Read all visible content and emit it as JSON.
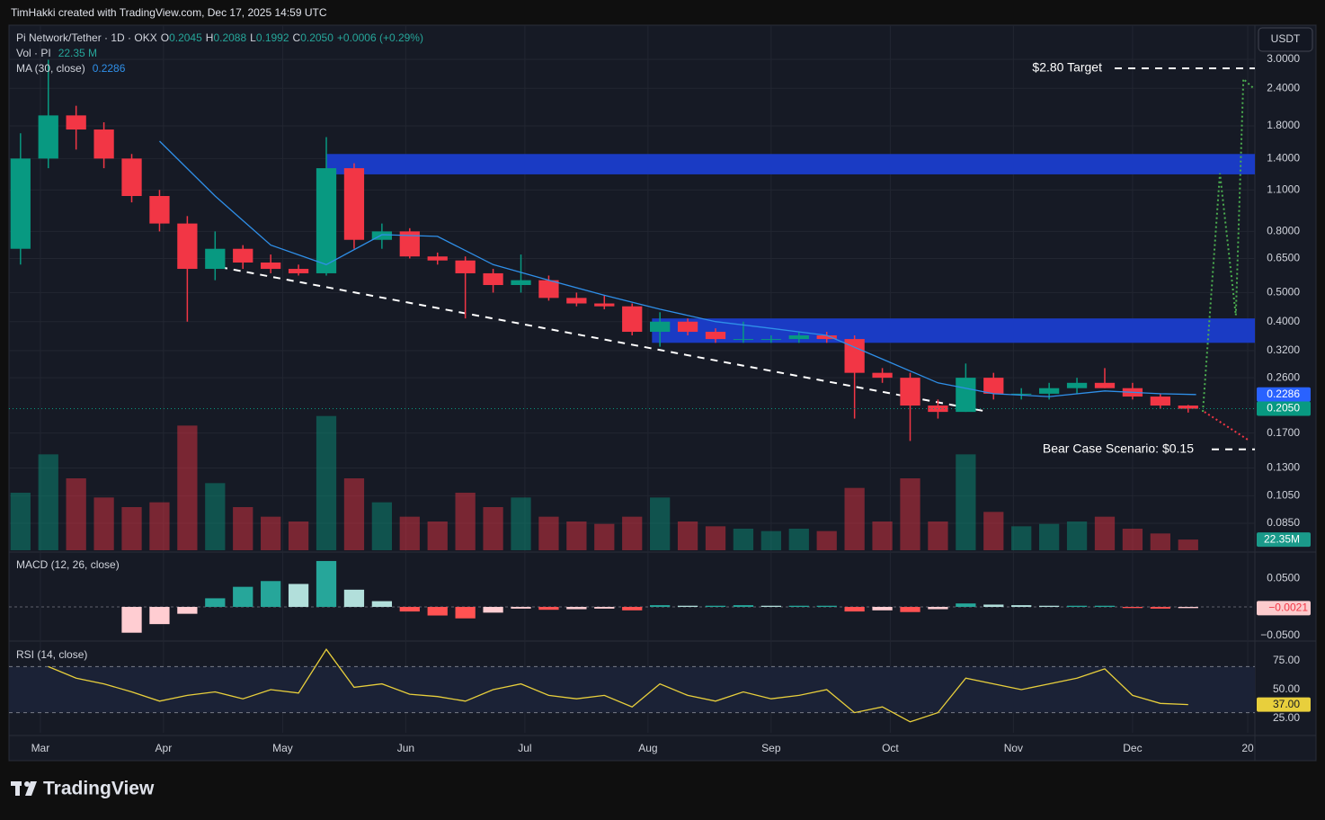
{
  "header": {
    "credit": "TimHakki created with TradingView.com, Dec 17, 2025 14:59 UTC"
  },
  "footer": {
    "brand": "TradingView"
  },
  "chart_data": {
    "type": "candlestick",
    "title": "Pi Network/Tether · 1D · OKX",
    "legend": {
      "o_label": "O",
      "open": "0.2045",
      "h_label": "H",
      "high": "0.2088",
      "l_label": "L",
      "low": "0.1992",
      "c_label": "C",
      "close": "0.2050",
      "change": "+0.0006 (+0.29%)",
      "volume_title": "Vol · PI",
      "volume": "22.35 M",
      "ma_title": "MA (30, close)",
      "ma": "0.2286"
    },
    "currency": "USDT",
    "log_scale": true,
    "grid": true,
    "up_color": "#089981",
    "down_color": "#f23645",
    "x": [
      -5,
      2,
      9,
      16,
      23,
      30,
      37,
      44,
      51,
      58,
      65,
      72,
      79,
      86,
      93,
      100,
      107,
      114,
      121,
      128,
      135,
      142,
      149,
      156,
      163,
      170,
      177,
      184,
      191,
      198,
      205,
      212,
      219,
      226,
      233,
      240,
      247,
      254,
      261,
      268,
      275,
      282,
      289
    ],
    "open": [
      0.7,
      1.4,
      1.95,
      1.75,
      1.4,
      1.05,
      0.85,
      0.6,
      0.7,
      0.63,
      0.6,
      0.58,
      1.3,
      0.75,
      0.8,
      0.66,
      0.64,
      0.58,
      0.53,
      0.55,
      0.48,
      0.46,
      0.45,
      0.37,
      0.4,
      0.37,
      0.35,
      0.35,
      0.35,
      0.36,
      0.35,
      0.27,
      0.26,
      0.21,
      0.2,
      0.26,
      0.23,
      0.23,
      0.24,
      0.25,
      0.24,
      0.225,
      0.21
    ],
    "high": [
      1.7,
      2.99,
      2.1,
      1.85,
      1.45,
      1.1,
      0.9,
      0.8,
      0.72,
      0.67,
      0.62,
      1.65,
      1.35,
      0.85,
      0.82,
      0.68,
      0.66,
      0.6,
      0.67,
      0.57,
      0.5,
      0.49,
      0.46,
      0.43,
      0.41,
      0.38,
      0.4,
      0.36,
      0.37,
      0.37,
      0.36,
      0.28,
      0.27,
      0.22,
      0.29,
      0.27,
      0.24,
      0.25,
      0.26,
      0.28,
      0.25,
      0.23,
      0.211
    ],
    "low": [
      0.62,
      1.3,
      1.5,
      1.3,
      1.0,
      0.8,
      0.4,
      0.55,
      0.6,
      0.58,
      0.57,
      0.57,
      0.7,
      0.7,
      0.65,
      0.62,
      0.41,
      0.5,
      0.5,
      0.47,
      0.45,
      0.44,
      0.36,
      0.33,
      0.36,
      0.34,
      0.34,
      0.34,
      0.34,
      0.34,
      0.19,
      0.25,
      0.16,
      0.19,
      0.2,
      0.22,
      0.22,
      0.22,
      0.23,
      0.24,
      0.22,
      0.205,
      0.199
    ],
    "close": [
      1.4,
      1.95,
      1.75,
      1.4,
      1.05,
      0.85,
      0.6,
      0.7,
      0.63,
      0.6,
      0.58,
      1.3,
      0.75,
      0.8,
      0.66,
      0.64,
      0.58,
      0.53,
      0.55,
      0.48,
      0.46,
      0.45,
      0.37,
      0.4,
      0.37,
      0.35,
      0.35,
      0.35,
      0.36,
      0.35,
      0.27,
      0.26,
      0.21,
      0.2,
      0.26,
      0.23,
      0.23,
      0.24,
      0.25,
      0.24,
      0.225,
      0.21,
      0.205
    ],
    "xlim": [
      -7.9,
      305.8
    ],
    "xticks": [
      {
        "value": 0,
        "label": "Mar"
      },
      {
        "value": 31,
        "label": "Apr"
      },
      {
        "value": 61,
        "label": "May"
      },
      {
        "value": 92,
        "label": "Jun"
      },
      {
        "value": 122,
        "label": "Jul"
      },
      {
        "value": 153,
        "label": "Aug"
      },
      {
        "value": 184,
        "label": "Sep"
      },
      {
        "value": 214,
        "label": "Oct"
      },
      {
        "value": 245,
        "label": "Nov"
      },
      {
        "value": 275,
        "label": "Dec"
      },
      {
        "value": 304,
        "label": "20"
      }
    ],
    "ylim": [
      0.0691,
      3.9
    ],
    "yticks": [
      {
        "value": 3,
        "label": "3.0000"
      },
      {
        "value": 2.4,
        "label": "2.4000"
      },
      {
        "value": 1.8,
        "label": "1.8000"
      },
      {
        "value": 1.4,
        "label": "1.4000"
      },
      {
        "value": 1.1,
        "label": "1.1000"
      },
      {
        "value": 0.8,
        "label": "0.8000"
      },
      {
        "value": 0.65,
        "label": "0.6500"
      },
      {
        "value": 0.5,
        "label": "0.5000"
      },
      {
        "value": 0.4,
        "label": "0.4000"
      },
      {
        "value": 0.32,
        "label": "0.3200"
      },
      {
        "value": 0.26,
        "label": "0.2600"
      },
      {
        "value": 0.17,
        "label": "0.1700"
      },
      {
        "value": 0.13,
        "label": "0.1300"
      },
      {
        "value": 0.105,
        "label": "0.1050"
      },
      {
        "value": 0.085,
        "label": "0.0850"
      }
    ],
    "volume": {
      "lim": [
        0,
        300
      ],
      "values": [
        120,
        200,
        150,
        110,
        90,
        100,
        260,
        140,
        90,
        70,
        60,
        280,
        150,
        100,
        70,
        60,
        120,
        90,
        110,
        70,
        60,
        55,
        70,
        110,
        60,
        50,
        45,
        40,
        45,
        40,
        130,
        60,
        150,
        60,
        200,
        80,
        50,
        55,
        60,
        70,
        45,
        35,
        22.35
      ]
    },
    "ma": {
      "name": "MA (30, close)",
      "color": "#2f8fe8",
      "x": [
        30,
        44,
        58,
        72,
        86,
        100,
        114,
        128,
        142,
        156,
        170,
        184,
        198,
        212,
        226,
        240,
        254,
        268,
        282,
        291
      ],
      "values": [
        1.6,
        1.05,
        0.72,
        0.62,
        0.78,
        0.77,
        0.62,
        0.55,
        0.49,
        0.44,
        0.4,
        0.38,
        0.36,
        0.3,
        0.25,
        0.23,
        0.225,
        0.235,
        0.23,
        0.2286
      ]
    },
    "last_price": {
      "value": 0.205,
      "label": "0.2050"
    },
    "ma_last": {
      "value": 0.2286,
      "label": "0.2286"
    },
    "volume_last": {
      "value": 22.35,
      "label": "22.35M"
    },
    "annotations": {
      "zone_color": "#1a3bc4",
      "zones": [
        {
          "x0": 72,
          "y": [
            1.24,
            1.45
          ]
        },
        {
          "x0": 154,
          "y": [
            0.34,
            0.41
          ]
        }
      ],
      "trendline": {
        "x": [
          45.3,
          238.8
        ],
        "y": [
          0.608,
          0.2
        ]
      },
      "target": {
        "label": "$2.80 Target",
        "value": 2.8
      },
      "bear": {
        "label": "Bear Case Scenario: $0.15",
        "value": 0.15
      },
      "bull_path": {
        "color": "#4caf50",
        "x": [
          292.7,
          297,
          301,
          302.9,
          305.5
        ],
        "y": [
          0.2,
          1.25,
          0.42,
          2.58,
          2.4
        ]
      },
      "bear_path": {
        "color": "#f23645",
        "x": [
          293.1,
          304.5
        ],
        "y": [
          0.2,
          0.16
        ]
      }
    },
    "macd": {
      "title": "MACD (12, 26, close)",
      "ylim": [
        -0.058,
        0.094
      ],
      "yticks": [
        {
          "value": 0.05,
          "label": "0.0500"
        },
        {
          "value": -0.05,
          "label": "−0.0500"
        }
      ],
      "values": [
        null,
        null,
        null,
        null,
        -0.045,
        -0.03,
        -0.012,
        0.015,
        0.035,
        0.045,
        0.04,
        0.08,
        0.03,
        0.01,
        -0.008,
        -0.015,
        -0.02,
        -0.01,
        -0.003,
        -0.005,
        -0.004,
        -0.003,
        -0.006,
        0.003,
        0.002,
        0.002,
        0.003,
        0.002,
        0.002,
        0.002,
        -0.008,
        -0.006,
        -0.009,
        -0.004,
        0.006,
        0.004,
        0.003,
        0.002,
        0.002,
        0.002,
        -0.002,
        -0.003,
        -0.0021
      ],
      "last": {
        "value": -0.0021,
        "label": "−0.0021"
      }
    },
    "rsi": {
      "title": "RSI (14, close)",
      "color": "#e8cf3c",
      "ylim": [
        12.5,
        90.6
      ],
      "yticks": [
        {
          "value": 75,
          "label": "75.00"
        },
        {
          "value": 50,
          "label": "50.00"
        },
        {
          "value": 25,
          "label": "25.00"
        }
      ],
      "bands": [
        30,
        70
      ],
      "values": [
        null,
        70,
        60,
        55,
        48,
        40,
        45,
        48,
        42,
        50,
        47,
        85,
        52,
        55,
        46,
        44,
        40,
        50,
        55,
        45,
        42,
        45,
        35,
        55,
        45,
        40,
        48,
        42,
        45,
        50,
        30,
        35,
        22,
        30,
        60,
        55,
        50,
        55,
        60,
        68,
        45,
        38,
        37
      ],
      "last": {
        "value": 37,
        "label": "37.00"
      }
    }
  }
}
